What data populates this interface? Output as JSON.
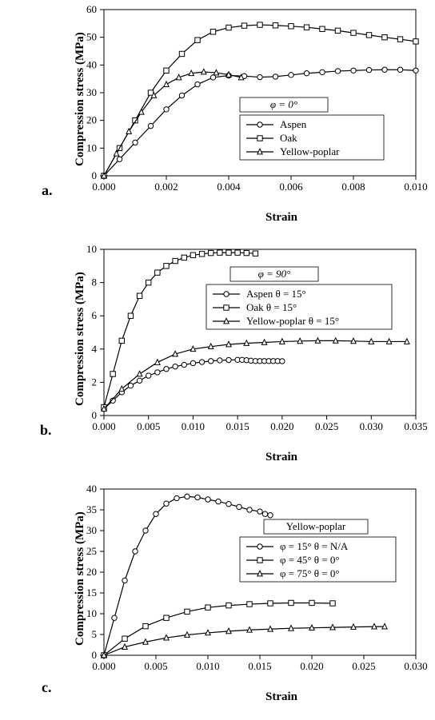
{
  "global": {
    "font": "Times New Roman",
    "text_color": "#000000",
    "line_color": "#000000",
    "background": "#ffffff",
    "marker_fill": "#ffffff",
    "tick_fontsize": 13,
    "axis_label_fontsize": 15,
    "panel_label_fontsize": 18,
    "stroke_width": 1.2,
    "marker_size": 3.2
  },
  "chart_a": {
    "type": "line",
    "panel_label": "a.",
    "xlabel": "Strain",
    "ylabel": "Compression stress (MPa)",
    "xlim": [
      0.0,
      0.01
    ],
    "ylim": [
      0,
      60
    ],
    "xticks": [
      0.0,
      0.002,
      0.004,
      0.006,
      0.008,
      0.01
    ],
    "xtick_labels": [
      "0.000",
      "0.002",
      "0.004",
      "0.006",
      "0.008",
      "0.010"
    ],
    "yticks": [
      0,
      10,
      20,
      30,
      40,
      50,
      60
    ],
    "legend_title": "φ = 0°",
    "series": [
      {
        "name": "Aspen",
        "marker": "circle",
        "x": [
          0.0,
          0.0005,
          0.001,
          0.0015,
          0.002,
          0.0025,
          0.003,
          0.0035,
          0.004,
          0.0045,
          0.005,
          0.0055,
          0.006,
          0.0065,
          0.007,
          0.0075,
          0.008,
          0.0085,
          0.009,
          0.0095,
          0.01
        ],
        "y": [
          0,
          6,
          12,
          18,
          24,
          29,
          33,
          35.5,
          36.2,
          36.0,
          35.6,
          35.8,
          36.4,
          37.0,
          37.4,
          37.8,
          38.0,
          38.2,
          38.3,
          38.3,
          38.0
        ]
      },
      {
        "name": "Oak",
        "marker": "square",
        "x": [
          0.0,
          0.0005,
          0.001,
          0.0015,
          0.002,
          0.0025,
          0.003,
          0.0035,
          0.004,
          0.0045,
          0.005,
          0.0055,
          0.006,
          0.0065,
          0.007,
          0.0075,
          0.008,
          0.0085,
          0.009,
          0.0095,
          0.01
        ],
        "y": [
          0,
          10,
          20,
          30,
          38,
          44,
          49,
          52,
          53.5,
          54.2,
          54.5,
          54.3,
          54.0,
          53.6,
          53.0,
          52.4,
          51.6,
          50.8,
          50.0,
          49.3,
          48.5
        ]
      },
      {
        "name": "Yellow-poplar",
        "marker": "triangle",
        "x": [
          0.0,
          0.0004,
          0.0008,
          0.0012,
          0.0016,
          0.002,
          0.0024,
          0.0028,
          0.0032,
          0.0036,
          0.004,
          0.0044
        ],
        "y": [
          0,
          8,
          16,
          23,
          29,
          33,
          35.5,
          37,
          37.5,
          37.2,
          36.5,
          35.5
        ]
      }
    ]
  },
  "chart_b": {
    "type": "line",
    "panel_label": "b.",
    "xlabel": "Strain",
    "ylabel": "Compression stress (MPa)",
    "xlim": [
      0.0,
      0.035
    ],
    "ylim": [
      0,
      10
    ],
    "xticks": [
      0.0,
      0.005,
      0.01,
      0.015,
      0.02,
      0.025,
      0.03,
      0.035
    ],
    "xtick_labels": [
      "0.000",
      "0.005",
      "0.010",
      "0.015",
      "0.020",
      "0.025",
      "0.030",
      "0.035"
    ],
    "yticks": [
      0,
      2,
      4,
      6,
      8,
      10
    ],
    "legend_title": "φ = 90°",
    "series": [
      {
        "name": "Aspen   θ = 15°",
        "marker": "circle",
        "x": [
          0.0,
          0.001,
          0.002,
          0.003,
          0.004,
          0.005,
          0.006,
          0.007,
          0.008,
          0.009,
          0.01,
          0.011,
          0.012,
          0.013,
          0.014,
          0.015,
          0.0155,
          0.016,
          0.0165,
          0.017,
          0.0175,
          0.018,
          0.0185,
          0.019,
          0.0195,
          0.02
        ],
        "y": [
          0.4,
          0.9,
          1.4,
          1.8,
          2.1,
          2.4,
          2.6,
          2.8,
          2.95,
          3.05,
          3.15,
          3.22,
          3.28,
          3.32,
          3.34,
          3.35,
          3.35,
          3.33,
          3.3,
          3.28,
          3.28,
          3.28,
          3.28,
          3.28,
          3.28,
          3.27
        ]
      },
      {
        "name": "Oak   θ = 15°",
        "marker": "square",
        "x": [
          0.0,
          0.001,
          0.002,
          0.003,
          0.004,
          0.005,
          0.006,
          0.007,
          0.008,
          0.009,
          0.01,
          0.011,
          0.012,
          0.013,
          0.014,
          0.015,
          0.016,
          0.017
        ],
        "y": [
          0.5,
          2.5,
          4.5,
          6.0,
          7.2,
          8.0,
          8.6,
          9.0,
          9.3,
          9.5,
          9.65,
          9.72,
          9.78,
          9.8,
          9.8,
          9.8,
          9.78,
          9.75
        ]
      },
      {
        "name": "Yellow-poplar θ = 15°",
        "marker": "triangle",
        "x": [
          0.0,
          0.002,
          0.004,
          0.006,
          0.008,
          0.01,
          0.012,
          0.014,
          0.016,
          0.018,
          0.02,
          0.022,
          0.024,
          0.026,
          0.028,
          0.03,
          0.032,
          0.034
        ],
        "y": [
          0.4,
          1.6,
          2.5,
          3.2,
          3.7,
          4.0,
          4.15,
          4.28,
          4.35,
          4.4,
          4.45,
          4.48,
          4.5,
          4.5,
          4.48,
          4.45,
          4.45,
          4.45
        ]
      }
    ]
  },
  "chart_c": {
    "type": "line",
    "panel_label": "c.",
    "xlabel": "Strain",
    "ylabel": "Compression stress (MPa)",
    "xlim": [
      0.0,
      0.03
    ],
    "ylim": [
      0,
      40
    ],
    "xticks": [
      0.0,
      0.005,
      0.01,
      0.015,
      0.02,
      0.025,
      0.03
    ],
    "xtick_labels": [
      "0.000",
      "0.005",
      "0.010",
      "0.015",
      "0.020",
      "0.025",
      "0.030"
    ],
    "yticks": [
      0,
      5,
      10,
      15,
      20,
      25,
      30,
      35,
      40
    ],
    "legend_title": "Yellow-poplar",
    "series": [
      {
        "name": "φ = 15°   θ = N/A",
        "marker": "circle",
        "x": [
          0.0,
          0.001,
          0.002,
          0.003,
          0.004,
          0.005,
          0.006,
          0.007,
          0.008,
          0.009,
          0.01,
          0.011,
          0.012,
          0.013,
          0.014,
          0.015,
          0.0155,
          0.016
        ],
        "y": [
          0,
          9,
          18,
          25,
          30,
          34,
          36.5,
          37.8,
          38.2,
          38.0,
          37.5,
          37.0,
          36.4,
          35.7,
          35.0,
          34.6,
          34.0,
          33.7
        ]
      },
      {
        "name": "φ = 45°   θ = 0°",
        "marker": "square",
        "x": [
          0.0,
          0.002,
          0.004,
          0.006,
          0.008,
          0.01,
          0.012,
          0.014,
          0.016,
          0.018,
          0.02,
          0.022
        ],
        "y": [
          0,
          4,
          7,
          9,
          10.5,
          11.5,
          12.0,
          12.3,
          12.5,
          12.6,
          12.6,
          12.5
        ]
      },
      {
        "name": "φ = 75°   θ = 0°",
        "marker": "triangle",
        "x": [
          0.0,
          0.002,
          0.004,
          0.006,
          0.008,
          0.01,
          0.012,
          0.014,
          0.016,
          0.018,
          0.02,
          0.022,
          0.024,
          0.026,
          0.027
        ],
        "y": [
          0,
          2.0,
          3.2,
          4.2,
          4.9,
          5.4,
          5.8,
          6.1,
          6.3,
          6.5,
          6.6,
          6.7,
          6.8,
          6.9,
          6.9
        ]
      }
    ]
  }
}
